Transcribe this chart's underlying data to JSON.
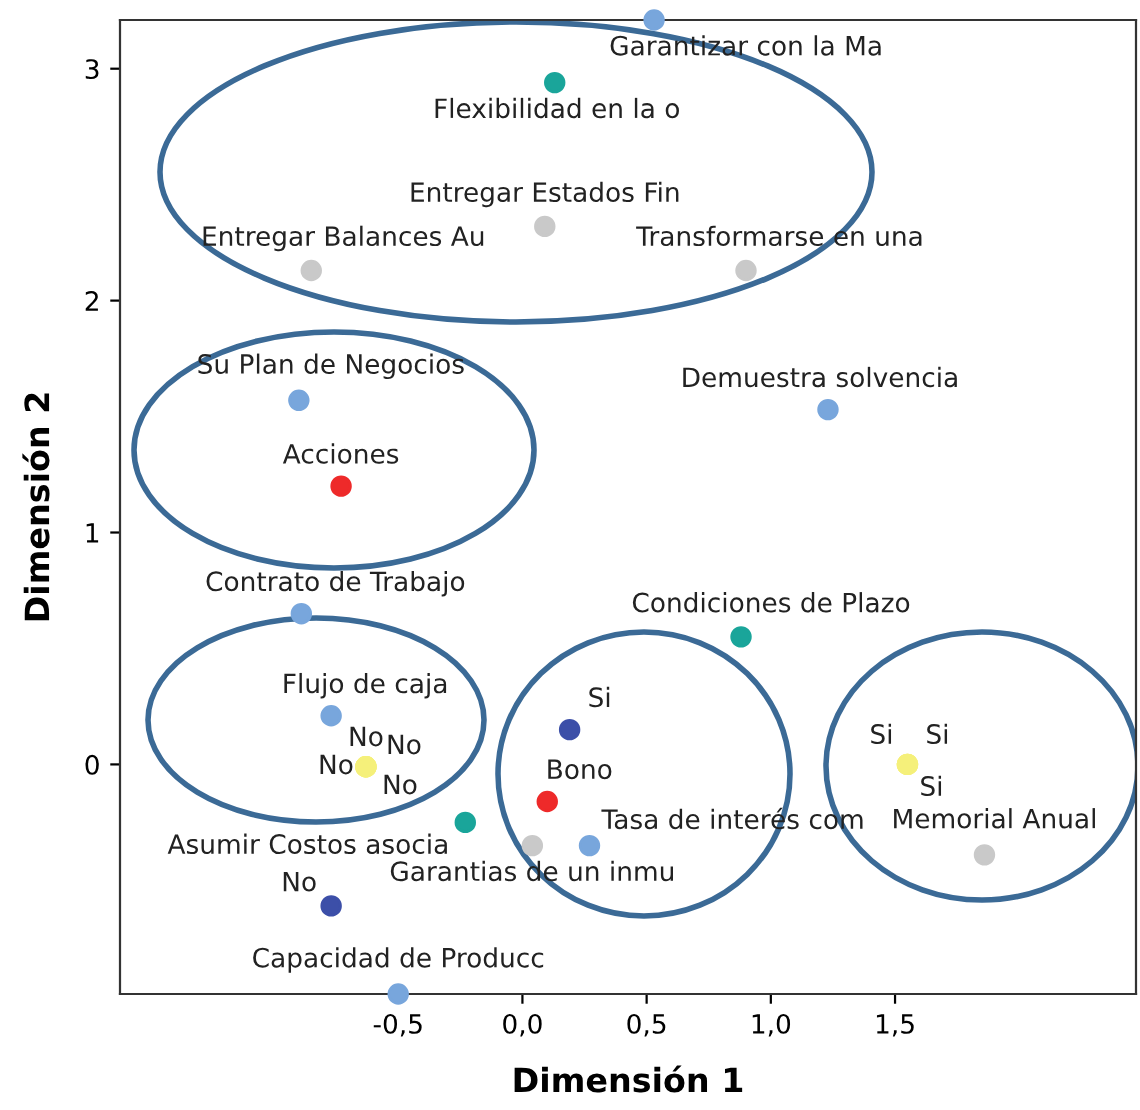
{
  "chart_data": {
    "type": "scatter",
    "xlabel": "Dimensión 1",
    "ylabel": "Dimensión 2",
    "xlim": [
      -1.62,
      2.47
    ],
    "ylim": [
      -0.99,
      3.21
    ],
    "xticks": [
      {
        "value": -0.5,
        "label": "-0,5"
      },
      {
        "value": 0,
        "label": "0,0"
      },
      {
        "value": 0.5,
        "label": "0,5"
      },
      {
        "value": 1,
        "label": "1,0"
      },
      {
        "value": 1.5,
        "label": "1,5"
      }
    ],
    "yticks": [
      0,
      1,
      2,
      3
    ],
    "grid": false,
    "legend": false,
    "marker": "circle",
    "series": [
      {
        "color": "#78a6dc",
        "x": [
          0.53,
          -0.9,
          1.23,
          -0.89,
          -0.77,
          0.27,
          -0.5
        ],
        "values": [
          3.21,
          1.57,
          1.53,
          0.65,
          0.21,
          -0.35,
          -0.99
        ],
        "value_labels": [
          "Garantizar con la Ma",
          "Su Plan de Negocios",
          "Demuestra solvencia",
          "Contrato de Trabajo",
          "Flujo de caja",
          "Tasa de interés com",
          "Capacidad de Producc"
        ]
      },
      {
        "color": "#1aa59a",
        "x": [
          0.13,
          0.88,
          -0.23
        ],
        "values": [
          2.94,
          0.55,
          -0.25
        ],
        "value_labels": [
          "Flexibilidad en la o",
          "Condiciones de Plazo",
          "Asumir Costos asocia"
        ]
      },
      {
        "color": "#c9c9c9",
        "x": [
          0.09,
          -0.85,
          0.9,
          0.04,
          1.86
        ],
        "values": [
          2.32,
          2.13,
          2.13,
          -0.35,
          -0.39
        ],
        "value_labels": [
          "Entregar Estados Fin",
          "Entregar Balances Au",
          "Transformarse en una",
          "Garantias de un inmu",
          "Memorial Anual"
        ]
      },
      {
        "color": "#ee2a2a",
        "x": [
          -0.73,
          0.1
        ],
        "values": [
          1.2,
          -0.16
        ],
        "value_labels": [
          "Acciones",
          "Bono"
        ]
      },
      {
        "color": "#3c4fa8",
        "x": [
          0.19,
          -0.77
        ],
        "values": [
          0.15,
          -0.61
        ],
        "value_labels": [
          "Si",
          "No"
        ]
      },
      {
        "color": "#f5f07a",
        "x": [
          -0.63,
          -0.63,
          -0.63,
          -0.63,
          1.55,
          1.55,
          1.55
        ],
        "values": [
          -0.01,
          -0.01,
          -0.01,
          -0.01,
          0.0,
          0.0,
          0.0
        ],
        "value_labels": [
          "No",
          "No",
          "No",
          "No",
          "Si",
          "Si",
          "Si"
        ]
      }
    ]
  }
}
